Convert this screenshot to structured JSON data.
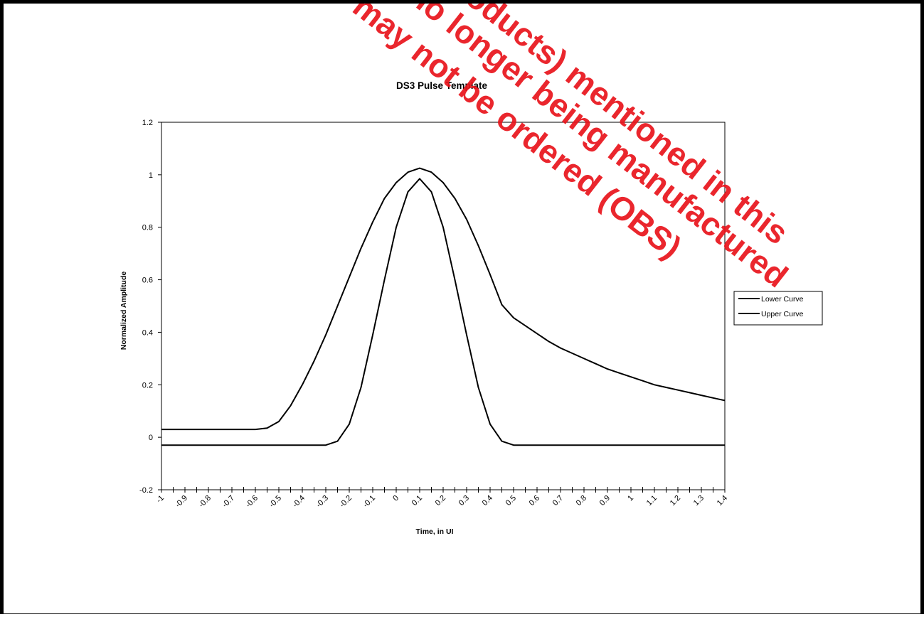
{
  "chart_data": {
    "type": "line",
    "title": "DS3 Pulse Template",
    "xlabel": "Time, in UI",
    "ylabel": "Normalized Amplitude",
    "xlim": [
      -1,
      1.4
    ],
    "ylim": [
      -0.2,
      1.2
    ],
    "x_ticks": [
      "-1",
      "-0.9",
      "-0.8",
      "-0.7",
      "-0.6",
      "-0.5",
      "-0.4",
      "-0.3",
      "-0.2",
      "-0.1",
      "0",
      "0.1",
      "0.2",
      "0.3",
      "0.4",
      "0.5",
      "0.6",
      "0.7",
      "0.8",
      "0.9",
      "1",
      "1.1",
      "1.2",
      "1.3",
      "1.4"
    ],
    "y_ticks": [
      "-0.2",
      "0",
      "0.2",
      "0.4",
      "0.6",
      "0.8",
      "1",
      "1.2"
    ],
    "x_minor_step": 0.05,
    "grid": false,
    "legend_position": "right",
    "line_color": "#000000",
    "series": [
      {
        "name": "Lower Curve",
        "x": [
          -1,
          -0.95,
          -0.9,
          -0.85,
          -0.8,
          -0.75,
          -0.7,
          -0.65,
          -0.6,
          -0.55,
          -0.5,
          -0.45,
          -0.4,
          -0.35,
          -0.3,
          -0.25,
          -0.2,
          -0.15,
          -0.1,
          -0.05,
          0,
          0.05,
          0.1,
          0.15,
          0.2,
          0.25,
          0.3,
          0.35,
          0.4,
          0.45,
          0.5,
          0.55,
          0.6,
          0.65,
          0.7,
          0.75,
          0.8,
          0.85,
          0.9,
          0.95,
          1,
          1.05,
          1.1,
          1.15,
          1.2,
          1.25,
          1.3,
          1.35,
          1.4
        ],
        "y": [
          -0.03,
          -0.03,
          -0.03,
          -0.03,
          -0.03,
          -0.03,
          -0.03,
          -0.03,
          -0.03,
          -0.03,
          -0.03,
          -0.03,
          -0.03,
          -0.03,
          -0.03,
          -0.015,
          0.05,
          0.19,
          0.39,
          0.6,
          0.8,
          0.935,
          0.985,
          0.935,
          0.8,
          0.6,
          0.39,
          0.19,
          0.05,
          -0.015,
          -0.03,
          -0.03,
          -0.03,
          -0.03,
          -0.03,
          -0.03,
          -0.03,
          -0.03,
          -0.03,
          -0.03,
          -0.03,
          -0.03,
          -0.03,
          -0.03,
          -0.03,
          -0.03,
          -0.03,
          -0.03,
          -0.03
        ]
      },
      {
        "name": "Upper Curve",
        "x": [
          -1,
          -0.95,
          -0.9,
          -0.85,
          -0.8,
          -0.75,
          -0.7,
          -0.65,
          -0.6,
          -0.55,
          -0.5,
          -0.45,
          -0.4,
          -0.35,
          -0.3,
          -0.25,
          -0.2,
          -0.15,
          -0.1,
          -0.05,
          0,
          0.05,
          0.1,
          0.15,
          0.2,
          0.25,
          0.3,
          0.35,
          0.4,
          0.45,
          0.5,
          0.55,
          0.6,
          0.65,
          0.7,
          0.75,
          0.8,
          0.85,
          0.9,
          0.95,
          1,
          1.05,
          1.1,
          1.15,
          1.2,
          1.25,
          1.3,
          1.35,
          1.4
        ],
        "y": [
          0.03,
          0.03,
          0.03,
          0.03,
          0.03,
          0.03,
          0.03,
          0.03,
          0.03,
          0.035,
          0.06,
          0.12,
          0.2,
          0.29,
          0.39,
          0.5,
          0.61,
          0.72,
          0.82,
          0.91,
          0.97,
          1.01,
          1.025,
          1.01,
          0.97,
          0.91,
          0.83,
          0.73,
          0.62,
          0.505,
          0.455,
          0.425,
          0.395,
          0.365,
          0.34,
          0.32,
          0.3,
          0.28,
          0.26,
          0.245,
          0.23,
          0.215,
          0.2,
          0.19,
          0.18,
          0.17,
          0.16,
          0.15,
          0.14
        ]
      }
    ]
  },
  "watermark": {
    "lines": [
      "may not be ordered (OBS)",
      "no longer being manufactured",
      "products) mentioned in this"
    ],
    "color": "#e8141b"
  }
}
